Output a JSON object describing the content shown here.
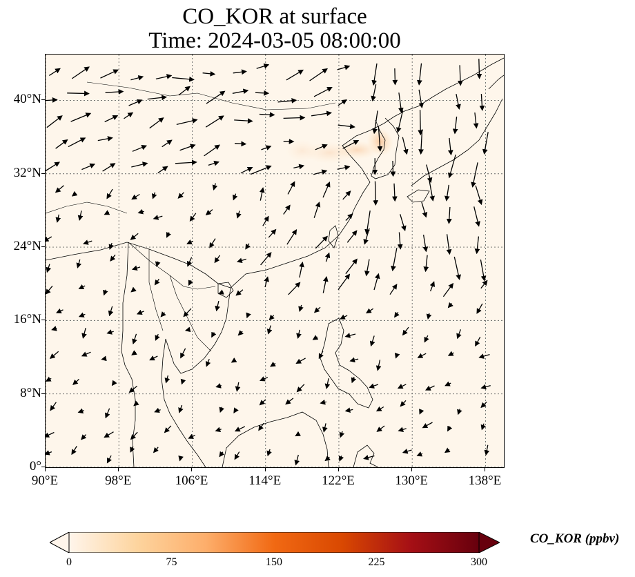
{
  "title": {
    "line1": "CO_KOR at surface",
    "line2": "Time: 2024-03-05 08:00:00"
  },
  "map": {
    "extent": {
      "lon_min": 90,
      "lon_max": 140,
      "lat_min": 0,
      "lat_max": 45
    },
    "background_color": "#fef6eb",
    "gridlines": "dotted",
    "lat_ticks": [
      {
        "value": 40,
        "label": "40°N"
      },
      {
        "value": 32,
        "label": "32°N"
      },
      {
        "value": 24,
        "label": "24°N"
      },
      {
        "value": 16,
        "label": "16°N"
      },
      {
        "value": 8,
        "label": "8°N"
      },
      {
        "value": 0,
        "label": "0°"
      }
    ],
    "lon_ticks": [
      {
        "value": 90,
        "label": "90°E"
      },
      {
        "value": 98,
        "label": "98°E"
      },
      {
        "value": 106,
        "label": "106°E"
      },
      {
        "value": 114,
        "label": "114°E"
      },
      {
        "value": 122,
        "label": "122°E"
      },
      {
        "value": 130,
        "label": "130°E"
      },
      {
        "value": 138,
        "label": "138°E"
      }
    ],
    "plume": [
      {
        "lon": 126.5,
        "lat": 35.5,
        "rlon": 1.4,
        "rlat": 1.6,
        "opacity": 0.55
      },
      {
        "lon": 124.0,
        "lat": 34.6,
        "rlon": 2.4,
        "rlat": 1.0,
        "opacity": 0.35
      },
      {
        "lon": 121.0,
        "lat": 34.3,
        "rlon": 2.8,
        "rlat": 1.2,
        "opacity": 0.22
      },
      {
        "lon": 118.0,
        "lat": 34.5,
        "rlon": 1.8,
        "rlat": 1.2,
        "opacity": 0.15
      }
    ]
  },
  "colorbar": {
    "label": "CO_KOR (ppbv)",
    "min": 0,
    "max": 300,
    "ticks": [
      "0",
      "75",
      "150",
      "225",
      "300"
    ],
    "extend": "both",
    "cmap": [
      "#fff5eb",
      "#fdd49e",
      "#fdae6b",
      "#f16913",
      "#d94801",
      "#a50f15",
      "#67000d"
    ]
  }
}
